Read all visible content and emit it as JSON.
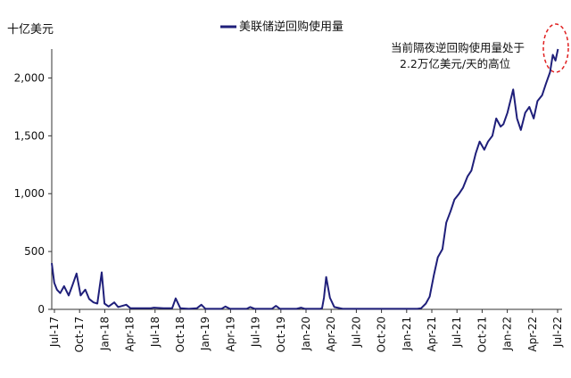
{
  "chart_data": {
    "type": "line",
    "title": "",
    "unit_label": "十亿美元",
    "xlabel": "",
    "ylabel": "",
    "ylim": [
      0,
      2250
    ],
    "y_ticks": [
      0,
      500,
      1000,
      1500,
      2000
    ],
    "y_tick_labels": [
      "0",
      "500",
      "1,000",
      "1,500",
      "2,000"
    ],
    "x_tick_labels": [
      "Jul-17",
      "Oct-17",
      "Jan-18",
      "Apr-18",
      "Jul-18",
      "Oct-18",
      "Jan-19",
      "Apr-19",
      "Jul-19",
      "Oct-19",
      "Jan-20",
      "Apr-20",
      "Jul-20",
      "Oct-20",
      "Jan-21",
      "Apr-21",
      "Jul-21",
      "Oct-21",
      "Jan-22",
      "Apr-22",
      "Jul-22"
    ],
    "grid": false,
    "legend_position": "top-center",
    "series": [
      {
        "name": "美联储逆回购使用量",
        "color": "#1f1f7a",
        "x": [
          "2017-07-01",
          "2017-07-10",
          "2017-07-20",
          "2017-08-01",
          "2017-08-15",
          "2017-09-01",
          "2017-09-15",
          "2017-09-30",
          "2017-10-15",
          "2017-11-01",
          "2017-11-15",
          "2017-12-01",
          "2017-12-15",
          "2017-12-31",
          "2018-01-10",
          "2018-01-25",
          "2018-02-15",
          "2018-03-01",
          "2018-03-31",
          "2018-04-15",
          "2018-05-15",
          "2018-06-15",
          "2018-06-29",
          "2018-07-10",
          "2018-08-15",
          "2018-09-15",
          "2018-09-28",
          "2018-10-15",
          "2018-11-15",
          "2018-12-15",
          "2018-12-31",
          "2019-01-15",
          "2019-02-15",
          "2019-03-15",
          "2019-03-29",
          "2019-04-15",
          "2019-05-15",
          "2019-06-15",
          "2019-06-28",
          "2019-07-15",
          "2019-08-15",
          "2019-09-15",
          "2019-09-30",
          "2019-10-15",
          "2019-11-15",
          "2019-12-15",
          "2019-12-31",
          "2020-01-15",
          "2020-02-15",
          "2020-03-01",
          "2020-03-10",
          "2020-03-17",
          "2020-03-24",
          "2020-04-01",
          "2020-04-15",
          "2020-05-01",
          "2020-06-01",
          "2020-07-01",
          "2020-08-01",
          "2020-09-01",
          "2020-10-01",
          "2020-11-01",
          "2020-12-01",
          "2021-01-01",
          "2021-02-01",
          "2021-03-01",
          "2021-03-15",
          "2021-04-01",
          "2021-04-15",
          "2021-05-01",
          "2021-05-15",
          "2021-06-01",
          "2021-06-15",
          "2021-07-01",
          "2021-07-15",
          "2021-08-01",
          "2021-08-15",
          "2021-09-01",
          "2021-09-15",
          "2021-10-01",
          "2021-10-15",
          "2021-11-01",
          "2021-11-15",
          "2021-12-01",
          "2021-12-15",
          "2021-12-31",
          "2022-01-10",
          "2022-01-25",
          "2022-02-15",
          "2022-03-01",
          "2022-03-15",
          "2022-03-31",
          "2022-04-15",
          "2022-05-01",
          "2022-05-15",
          "2022-06-01",
          "2022-06-15",
          "2022-06-30",
          "2022-07-10",
          "2022-07-20",
          "2022-07-29"
        ],
        "values": [
          400,
          230,
          170,
          140,
          200,
          120,
          210,
          310,
          120,
          170,
          90,
          60,
          50,
          320,
          50,
          25,
          60,
          20,
          40,
          10,
          10,
          10,
          10,
          15,
          10,
          10,
          95,
          10,
          5,
          10,
          40,
          5,
          5,
          5,
          25,
          5,
          5,
          5,
          20,
          5,
          5,
          5,
          30,
          5,
          5,
          5,
          15,
          5,
          5,
          5,
          5,
          10,
          100,
          280,
          100,
          20,
          5,
          5,
          5,
          5,
          5,
          5,
          5,
          5,
          5,
          5,
          10,
          50,
          110,
          300,
          450,
          520,
          750,
          850,
          950,
          1000,
          1050,
          1150,
          1200,
          1350,
          1450,
          1380,
          1450,
          1500,
          1650,
          1580,
          1600,
          1700,
          1900,
          1650,
          1550,
          1700,
          1750,
          1650,
          1800,
          1850,
          1950,
          2050,
          2200,
          2150,
          2250
        ]
      }
    ],
    "annotations": [
      {
        "text": "当前隔夜逆回购使用量处于",
        "target": "recent peak near Jul-22"
      },
      {
        "text": "2.2万亿美元/天的高位",
        "target": "recent peak near Jul-22"
      }
    ]
  }
}
